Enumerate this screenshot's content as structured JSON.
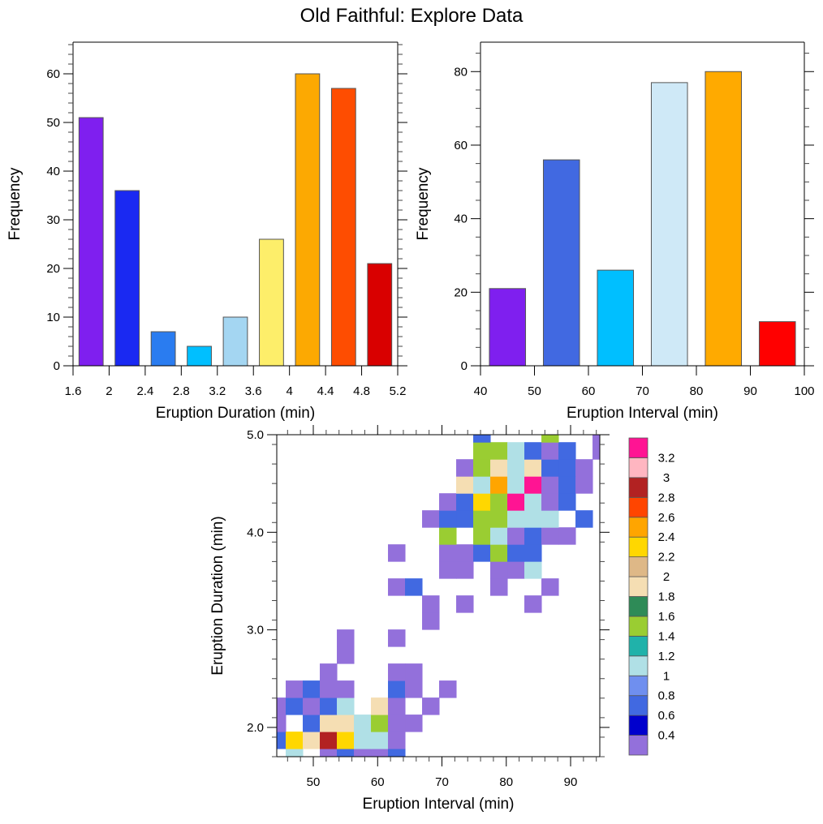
{
  "figure": {
    "title": "Old Faithful: Explore Data"
  },
  "chart_data": [
    {
      "id": "duration-histogram",
      "type": "bar",
      "title": "",
      "xlabel": "Eruption Duration (min)",
      "ylabel": "Frequency",
      "bin_edges": [
        1.6,
        2.0,
        2.4,
        2.8,
        3.2,
        3.6,
        4.0,
        4.4,
        4.8,
        5.2
      ],
      "values": [
        51,
        36,
        7,
        4,
        10,
        26,
        60,
        57,
        21
      ],
      "colors": [
        "#7f1fef",
        "#1a29f2",
        "#2a7cf0",
        "#00bfff",
        "#a4d6f2",
        "#fdee6a",
        "#fca902",
        "#fe4d01",
        "#d90000"
      ],
      "xlim": [
        1.6,
        5.2
      ],
      "ylim": [
        0,
        66.5
      ],
      "xticks": [
        1.6,
        2.0,
        2.4,
        2.8,
        3.2,
        3.6,
        4.0,
        4.4,
        4.8,
        5.2
      ],
      "xtick_labels": [
        "1.6",
        "2",
        "2.4",
        "2.8",
        "3.2",
        "3.6",
        "4",
        "4.4",
        "4.8",
        "5.2"
      ],
      "yticks": [
        0,
        10,
        20,
        30,
        40,
        50,
        60
      ],
      "ytick_labels": [
        "0",
        "10",
        "20",
        "30",
        "40",
        "50",
        "60"
      ],
      "yminor_step": 2,
      "grid": false,
      "legend": "none"
    },
    {
      "id": "interval-histogram",
      "type": "bar",
      "title": "",
      "xlabel": "Eruption Interval (min)",
      "ylabel": "Frequency",
      "bin_edges": [
        40,
        50,
        60,
        70,
        80,
        90,
        100
      ],
      "values": [
        21,
        56,
        26,
        77,
        80,
        12
      ],
      "colors": [
        "#7f1fef",
        "#4169e1",
        "#00bfff",
        "#cfe9f7",
        "#ffaa00",
        "#ff0000"
      ],
      "xlim": [
        40,
        100
      ],
      "ylim": [
        0,
        88
      ],
      "xticks": [
        40,
        50,
        60,
        70,
        80,
        90,
        100
      ],
      "xtick_labels": [
        "40",
        "50",
        "60",
        "70",
        "80",
        "90",
        "100"
      ],
      "yticks": [
        0,
        20,
        40,
        60,
        80
      ],
      "ytick_labels": [
        "0",
        "20",
        "40",
        "60",
        "80"
      ],
      "yminor_step": 5,
      "grid": false,
      "legend": "none"
    },
    {
      "id": "joint-heatmap",
      "type": "heatmap",
      "title": "",
      "xlabel": "Eruption Interval (min)",
      "ylabel": "Eruption Duration (min)",
      "xlim": [
        44.32,
        94.54
      ],
      "ylim": [
        1.7,
        5.0
      ],
      "xticks": [
        50,
        60,
        70,
        80,
        90
      ],
      "xtick_labels": [
        "50",
        "60",
        "70",
        "80",
        "90"
      ],
      "yticks": [
        2.0,
        3.0,
        4.0,
        5.0
      ],
      "ytick_labels": [
        "2.0",
        "3.0",
        "4.0",
        "5.0"
      ],
      "xminor_step": 2,
      "yminor_step": 0.2,
      "x_bin_start": 43.06,
      "x_bin_width": 2.65,
      "y_bin_start": 1.608,
      "y_bin_width": 0.1745,
      "grid_note": "rows listed from bottom (low duration) to top; each string has one char per x-bin; '.' = empty",
      "code_values": {
        "P": 0.3,
        "B": 0.7,
        "W": 1.1,
        "G": 1.5,
        "H": 1.9,
        "Y": 2.3,
        "O": 2.5,
        "R": 2.9,
        "K": 3.3
      },
      "rows": [
        ".W.PBPPB............",
        "BYHRYWWP............",
        "P.BHHWGPP...........",
        "PBPBW.HP.P..........",
        ".PBPP..BP.P.........",
        "...P...PP...........",
        "....P...............",
        "....P..P............",
        ".........P..........",
        ".........P.P...P....",
        ".......PB....P..P...",
        "..........PP.PPW....",
        ".......P..PPBGBB....",
        "..........G.GWPBPP..",
        ".........PBBGGWWW.B.",
        "..........PBYGKWPB..",
        "...........HWOWKPBP.",
        "...........PGHWHBBP.",
        "............GGWBPB.P",
        "............B...G..P"
      ],
      "colorbar": {
        "levels": [
          0.4,
          0.6,
          0.8,
          1,
          1.2,
          1.4,
          1.6,
          1.8,
          2,
          2.2,
          2.4,
          2.6,
          2.8,
          3,
          3.2
        ],
        "labels": [
          "0.4",
          "0.6",
          "0.8",
          "1",
          "1.2",
          "1.4",
          "1.6",
          "1.8",
          "2",
          "2.2",
          "2.4",
          "2.6",
          "2.8",
          "3",
          "3.2"
        ],
        "colors": [
          "#9370db",
          "#0000cd",
          "#4169e1",
          "#6f8fef",
          "#b0e0e6",
          "#20b2aa",
          "#9acd32",
          "#2e8b57",
          "#f5deb3",
          "#deb887",
          "#ffd700",
          "#ffa500",
          "#ff4500",
          "#b22222",
          "#ffb6c1",
          "#ff1493"
        ],
        "placement": "right"
      }
    }
  ]
}
